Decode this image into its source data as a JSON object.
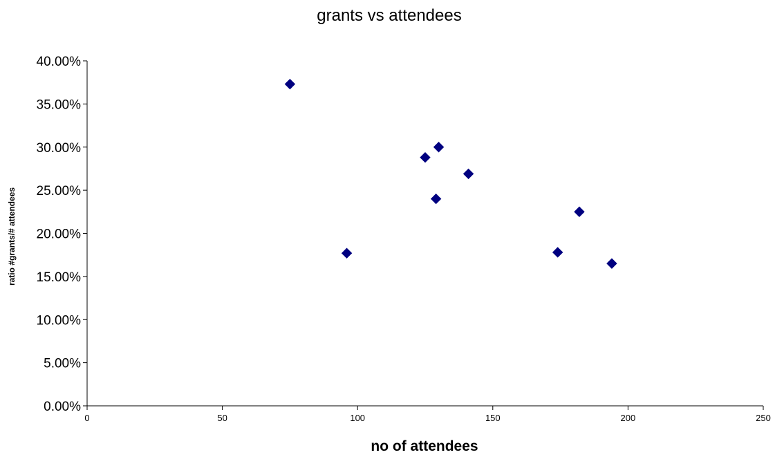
{
  "chart_data": {
    "type": "scatter",
    "title": "grants vs attendees",
    "xlabel": "no of attendees",
    "ylabel": "ratio #grants/# attendees",
    "xlim": [
      0,
      250
    ],
    "ylim": [
      0,
      0.4
    ],
    "x_ticks": [
      0,
      50,
      100,
      150,
      200,
      250
    ],
    "x_tick_labels": [
      "0",
      "50",
      "100",
      "150",
      "200",
      "250"
    ],
    "y_ticks": [
      0,
      0.05,
      0.1,
      0.15,
      0.2,
      0.25,
      0.3,
      0.35,
      0.4
    ],
    "y_tick_labels": [
      "0.00%",
      "5.00%",
      "10.00%",
      "15.00%",
      "20.00%",
      "25.00%",
      "30.00%",
      "35.00%",
      "40.00%"
    ],
    "grid": false,
    "legend": "none",
    "marker": "diamond",
    "marker_color": "#000080",
    "points": [
      {
        "x": 75,
        "y": 0.373
      },
      {
        "x": 96,
        "y": 0.177
      },
      {
        "x": 125,
        "y": 0.288
      },
      {
        "x": 129,
        "y": 0.24
      },
      {
        "x": 130,
        "y": 0.3
      },
      {
        "x": 141,
        "y": 0.269
      },
      {
        "x": 174,
        "y": 0.178
      },
      {
        "x": 182,
        "y": 0.225
      },
      {
        "x": 194,
        "y": 0.165
      }
    ]
  }
}
